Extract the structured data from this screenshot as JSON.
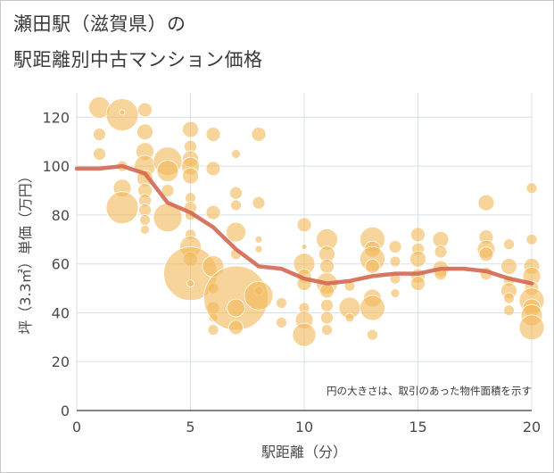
{
  "chart_data": {
    "type": "scatter",
    "title_line1": "瀬田駅（滋賀県）の",
    "title_line2": "駅距離別中古マンション価格",
    "xlabel": "駅距離（分）",
    "ylabel": "坪（3.3㎡）単価（万円）",
    "note": "円の大きさは、取引のあった物件面積を示す",
    "xlim": [
      0,
      20
    ],
    "ylim": [
      0,
      130
    ],
    "x_ticks": [
      0,
      5,
      10,
      15,
      20
    ],
    "y_ticks": [
      0,
      20,
      40,
      60,
      80,
      100,
      120
    ],
    "grid": true,
    "bubble_color": "#f2b95a",
    "line_color": "#d46a55",
    "line": {
      "x": [
        0,
        1,
        2,
        3,
        4,
        5,
        6,
        7,
        8,
        9,
        10,
        11,
        12,
        13,
        14,
        15,
        16,
        17,
        18,
        19,
        20
      ],
      "y": [
        99,
        99,
        100,
        97,
        85,
        81,
        75,
        66,
        59,
        58,
        54,
        52,
        53,
        55,
        56,
        56,
        58,
        58,
        57,
        54,
        52
      ]
    },
    "points": [
      {
        "x": 1,
        "y": 124,
        "s": 12
      },
      {
        "x": 2,
        "y": 121,
        "s": 18
      },
      {
        "x": 2,
        "y": 122,
        "s": 3
      },
      {
        "x": 3,
        "y": 123,
        "s": 8
      },
      {
        "x": 1,
        "y": 113,
        "s": 7
      },
      {
        "x": 1,
        "y": 105,
        "s": 7
      },
      {
        "x": 2,
        "y": 100,
        "s": 6
      },
      {
        "x": 2,
        "y": 91,
        "s": 10
      },
      {
        "x": 2,
        "y": 83,
        "s": 18
      },
      {
        "x": 3,
        "y": 114,
        "s": 9
      },
      {
        "x": 3,
        "y": 106,
        "s": 10
      },
      {
        "x": 3,
        "y": 100,
        "s": 12
      },
      {
        "x": 3,
        "y": 95,
        "s": 9
      },
      {
        "x": 3,
        "y": 90,
        "s": 8
      },
      {
        "x": 3,
        "y": 86,
        "s": 7
      },
      {
        "x": 3,
        "y": 82,
        "s": 7
      },
      {
        "x": 3,
        "y": 78,
        "s": 6
      },
      {
        "x": 3,
        "y": 74,
        "s": 5
      },
      {
        "x": 4,
        "y": 102,
        "s": 16
      },
      {
        "x": 4,
        "y": 98,
        "s": 12
      },
      {
        "x": 4,
        "y": 90,
        "s": 7
      },
      {
        "x": 4,
        "y": 79,
        "s": 16
      },
      {
        "x": 5,
        "y": 115,
        "s": 9
      },
      {
        "x": 5,
        "y": 108,
        "s": 7
      },
      {
        "x": 5,
        "y": 103,
        "s": 9
      },
      {
        "x": 5,
        "y": 100,
        "s": 10
      },
      {
        "x": 5,
        "y": 96,
        "s": 9
      },
      {
        "x": 5,
        "y": 87,
        "s": 6
      },
      {
        "x": 5,
        "y": 83,
        "s": 7
      },
      {
        "x": 5,
        "y": 80,
        "s": 6
      },
      {
        "x": 5,
        "y": 72,
        "s": 6
      },
      {
        "x": 5,
        "y": 67,
        "s": 12
      },
      {
        "x": 5,
        "y": 62,
        "s": 8
      },
      {
        "x": 5,
        "y": 56,
        "s": 30
      },
      {
        "x": 5,
        "y": 52,
        "s": 4
      },
      {
        "x": 6,
        "y": 113,
        "s": 8
      },
      {
        "x": 6,
        "y": 99,
        "s": 8
      },
      {
        "x": 6,
        "y": 81,
        "s": 8
      },
      {
        "x": 6,
        "y": 59,
        "s": 12
      },
      {
        "x": 6,
        "y": 50,
        "s": 6
      },
      {
        "x": 6,
        "y": 42,
        "s": 7
      },
      {
        "x": 6,
        "y": 38,
        "s": 5
      },
      {
        "x": 6,
        "y": 33,
        "s": 6
      },
      {
        "x": 7,
        "y": 105,
        "s": 5
      },
      {
        "x": 7,
        "y": 89,
        "s": 7
      },
      {
        "x": 7,
        "y": 84,
        "s": 6
      },
      {
        "x": 7,
        "y": 73,
        "s": 11
      },
      {
        "x": 7,
        "y": 64,
        "s": 6
      },
      {
        "x": 7,
        "y": 46,
        "s": 36
      },
      {
        "x": 7,
        "y": 42,
        "s": 10
      },
      {
        "x": 7,
        "y": 34,
        "s": 8
      },
      {
        "x": 8,
        "y": 113,
        "s": 8
      },
      {
        "x": 8,
        "y": 85,
        "s": 7
      },
      {
        "x": 8,
        "y": 70,
        "s": 4
      },
      {
        "x": 8,
        "y": 66,
        "s": 4
      },
      {
        "x": 8,
        "y": 49,
        "s": 5
      },
      {
        "x": 8,
        "y": 47,
        "s": 16
      },
      {
        "x": 9,
        "y": 44,
        "s": 6
      },
      {
        "x": 9,
        "y": 36,
        "s": 6
      },
      {
        "x": 10,
        "y": 76,
        "s": 8
      },
      {
        "x": 10,
        "y": 67,
        "s": 3
      },
      {
        "x": 10,
        "y": 60,
        "s": 12
      },
      {
        "x": 10,
        "y": 55,
        "s": 8
      },
      {
        "x": 10,
        "y": 52,
        "s": 8
      },
      {
        "x": 10,
        "y": 42,
        "s": 6
      },
      {
        "x": 10,
        "y": 37,
        "s": 10
      },
      {
        "x": 10,
        "y": 31,
        "s": 13
      },
      {
        "x": 11,
        "y": 70,
        "s": 12
      },
      {
        "x": 11,
        "y": 64,
        "s": 9
      },
      {
        "x": 11,
        "y": 59,
        "s": 8
      },
      {
        "x": 11,
        "y": 52,
        "s": 12
      },
      {
        "x": 11,
        "y": 49,
        "s": 8
      },
      {
        "x": 11,
        "y": 43,
        "s": 7
      },
      {
        "x": 11,
        "y": 38,
        "s": 7
      },
      {
        "x": 11,
        "y": 33,
        "s": 6
      },
      {
        "x": 12,
        "y": 51,
        "s": 6
      },
      {
        "x": 12,
        "y": 42,
        "s": 12
      },
      {
        "x": 12,
        "y": 38,
        "s": 5
      },
      {
        "x": 13,
        "y": 70,
        "s": 14
      },
      {
        "x": 13,
        "y": 66,
        "s": 9
      },
      {
        "x": 13,
        "y": 62,
        "s": 14
      },
      {
        "x": 13,
        "y": 59,
        "s": 8
      },
      {
        "x": 13,
        "y": 46,
        "s": 10
      },
      {
        "x": 13,
        "y": 42,
        "s": 14
      },
      {
        "x": 13,
        "y": 31,
        "s": 6
      },
      {
        "x": 14,
        "y": 67,
        "s": 7
      },
      {
        "x": 14,
        "y": 61,
        "s": 6
      },
      {
        "x": 14,
        "y": 54,
        "s": 6
      },
      {
        "x": 14,
        "y": 48,
        "s": 5
      },
      {
        "x": 15,
        "y": 72,
        "s": 8
      },
      {
        "x": 15,
        "y": 66,
        "s": 7
      },
      {
        "x": 15,
        "y": 62,
        "s": 9
      },
      {
        "x": 15,
        "y": 55,
        "s": 8
      },
      {
        "x": 15,
        "y": 52,
        "s": 8
      },
      {
        "x": 16,
        "y": 70,
        "s": 9
      },
      {
        "x": 16,
        "y": 65,
        "s": 7
      },
      {
        "x": 16,
        "y": 58,
        "s": 9
      },
      {
        "x": 16,
        "y": 56,
        "s": 7
      },
      {
        "x": 18,
        "y": 85,
        "s": 9
      },
      {
        "x": 18,
        "y": 71,
        "s": 8
      },
      {
        "x": 18,
        "y": 66,
        "s": 10
      },
      {
        "x": 18,
        "y": 64,
        "s": 8
      },
      {
        "x": 18,
        "y": 56,
        "s": 7
      },
      {
        "x": 19,
        "y": 68,
        "s": 6
      },
      {
        "x": 19,
        "y": 59,
        "s": 9
      },
      {
        "x": 19,
        "y": 53,
        "s": 6
      },
      {
        "x": 19,
        "y": 49,
        "s": 9
      },
      {
        "x": 19,
        "y": 46,
        "s": 6
      },
      {
        "x": 19,
        "y": 41,
        "s": 6
      },
      {
        "x": 20,
        "y": 91,
        "s": 6
      },
      {
        "x": 20,
        "y": 70,
        "s": 6
      },
      {
        "x": 20,
        "y": 59,
        "s": 9
      },
      {
        "x": 20,
        "y": 55,
        "s": 10
      },
      {
        "x": 20,
        "y": 50,
        "s": 8
      },
      {
        "x": 20,
        "y": 45,
        "s": 14
      },
      {
        "x": 20,
        "y": 42,
        "s": 10
      },
      {
        "x": 20,
        "y": 39,
        "s": 12
      },
      {
        "x": 20,
        "y": 34,
        "s": 14
      }
    ]
  }
}
